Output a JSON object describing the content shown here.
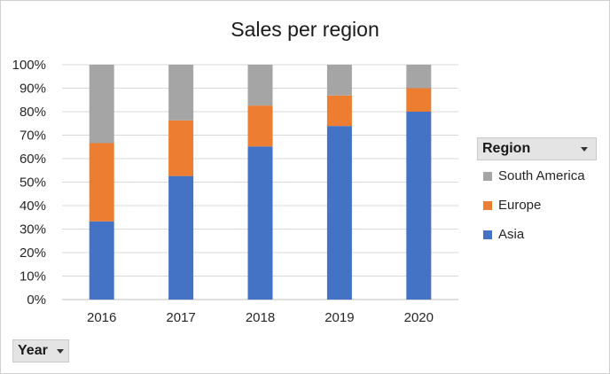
{
  "chart_data": {
    "type": "bar",
    "stacked": true,
    "percent_stacked": true,
    "title": "Sales per region",
    "xlabel": "",
    "ylabel": "",
    "categories": [
      "2016",
      "2017",
      "2018",
      "2019",
      "2020"
    ],
    "series": [
      {
        "name": "Asia",
        "color": "#4472c4",
        "values": [
          33.3,
          52.6,
          65.2,
          73.9,
          80.0
        ]
      },
      {
        "name": "Europe",
        "color": "#ed7d31",
        "values": [
          33.3,
          23.7,
          17.4,
          13.0,
          10.0
        ]
      },
      {
        "name": "South America",
        "color": "#a5a5a5",
        "values": [
          33.4,
          23.7,
          17.4,
          13.1,
          10.0
        ]
      }
    ],
    "ylim": [
      0,
      100
    ],
    "yticks": [
      "0%",
      "10%",
      "20%",
      "30%",
      "40%",
      "50%",
      "60%",
      "70%",
      "80%",
      "90%",
      "100%"
    ],
    "grid": true,
    "legend_position": "right"
  },
  "legend": {
    "field_label": "Region",
    "items": [
      "South America",
      "Europe",
      "Asia"
    ]
  },
  "axis_field": {
    "label": "Year"
  }
}
